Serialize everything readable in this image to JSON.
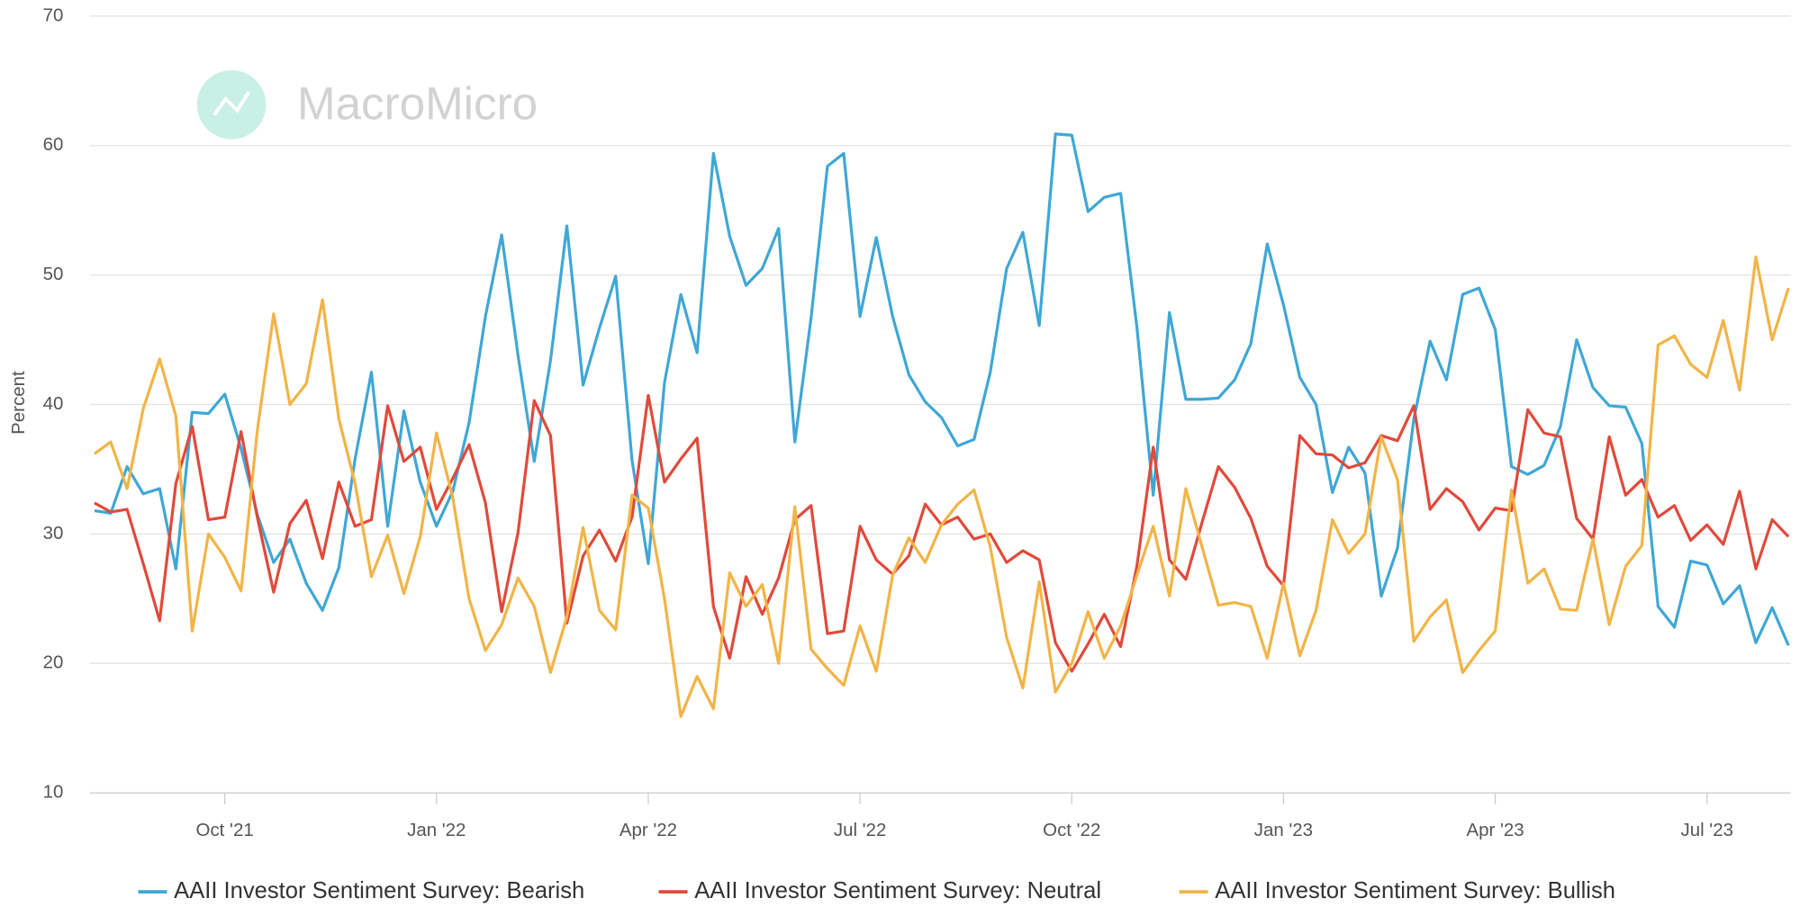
{
  "chart_data": {
    "type": "line",
    "watermark": "MacroMicro",
    "y_label": "Percent",
    "categories": [
      null,
      null,
      null,
      null,
      null,
      null,
      null,
      null,
      "Oct '21",
      null,
      null,
      null,
      null,
      null,
      null,
      null,
      null,
      null,
      null,
      null,
      null,
      "Jan '22",
      null,
      null,
      null,
      null,
      null,
      null,
      null,
      null,
      null,
      null,
      null,
      null,
      "Apr '22",
      null,
      null,
      null,
      null,
      null,
      null,
      null,
      null,
      null,
      null,
      null,
      null,
      "Jul '22",
      null,
      null,
      null,
      null,
      null,
      null,
      null,
      null,
      null,
      null,
      null,
      null,
      "Oct '22",
      null,
      null,
      null,
      null,
      null,
      null,
      null,
      null,
      null,
      null,
      null,
      null,
      "Jan '23",
      null,
      null,
      null,
      null,
      null,
      null,
      null,
      null,
      null,
      null,
      null,
      null,
      "Apr '23",
      null,
      null,
      null,
      null,
      null,
      null,
      null,
      null,
      null,
      null,
      null,
      null,
      "Jul '23",
      null,
      null,
      null,
      null,
      null
    ],
    "series": [
      {
        "name": "AAII Investor Sentiment Survey: Bearish",
        "color": "#3fa7d6",
        "values": [
          31.8,
          31.6,
          35.2,
          33.1,
          33.5,
          27.3,
          39.4,
          39.3,
          40.8,
          36.6,
          31.5,
          27.8,
          29.6,
          26.2,
          24.1,
          27.4,
          35.8,
          42.5,
          30.6,
          39.5,
          34.0,
          30.6,
          33.3,
          38.6,
          46.8,
          53.1,
          43.8,
          35.6,
          43.4,
          53.8,
          41.5,
          45.9,
          49.9,
          35.7,
          27.7,
          41.7,
          48.5,
          44.0,
          59.4,
          53.0,
          49.2,
          50.5,
          53.6,
          37.1,
          46.7,
          58.4,
          59.4,
          46.8,
          52.9,
          46.8,
          42.3,
          40.2,
          39.0,
          36.8,
          37.3,
          42.5,
          50.5,
          53.3,
          46.1,
          60.9,
          60.8,
          54.9,
          56.0,
          56.3,
          46.0,
          33.0,
          47.1,
          40.4,
          40.4,
          40.5,
          41.9,
          44.7,
          52.4,
          47.7,
          42.1,
          40.0,
          33.2,
          36.7,
          34.7,
          25.2,
          28.9,
          38.9,
          44.9,
          41.9,
          48.5,
          49.0,
          45.8,
          35.2,
          34.6,
          35.3,
          38.3,
          45.0,
          41.3,
          39.9,
          39.8,
          37.0,
          24.4,
          22.8,
          27.9,
          27.6,
          24.6,
          26.0,
          21.6,
          24.3,
          21.4
        ]
      },
      {
        "name": "AAII Investor Sentiment Survey: Neutral",
        "color": "#e04a3b",
        "values": [
          32.4,
          31.7,
          31.9,
          27.7,
          23.3,
          33.9,
          38.3,
          31.1,
          31.3,
          37.9,
          31.3,
          25.5,
          30.8,
          32.6,
          28.1,
          34.0,
          30.6,
          31.1,
          39.9,
          35.6,
          36.7,
          31.9,
          34.3,
          36.9,
          32.4,
          24.0,
          30.1,
          40.3,
          37.6,
          23.1,
          28.3,
          30.3,
          27.9,
          31.3,
          40.7,
          34.0,
          35.8,
          37.4,
          24.4,
          20.4,
          26.7,
          23.8,
          26.6,
          31.1,
          32.2,
          22.3,
          22.5,
          30.6,
          28.0,
          26.9,
          28.3,
          32.3,
          30.7,
          31.3,
          29.6,
          30.0,
          27.8,
          28.7,
          28.0,
          21.6,
          19.4,
          21.5,
          23.8,
          21.3,
          27.5,
          36.7,
          28.0,
          26.5,
          30.9,
          35.2,
          33.6,
          31.2,
          27.5,
          26.0,
          37.6,
          36.2,
          36.1,
          35.1,
          35.5,
          37.6,
          37.2,
          39.9,
          31.9,
          33.5,
          32.5,
          30.3,
          32.0,
          31.8,
          39.6,
          37.8,
          37.5,
          31.2,
          29.6,
          37.5,
          33.0,
          34.2,
          31.3,
          32.2,
          29.5,
          30.7,
          29.2,
          33.3,
          27.3,
          31.1,
          29.8
        ]
      },
      {
        "name": "AAII Investor Sentiment Survey: Bullish",
        "color": "#f2b447",
        "values": [
          36.2,
          37.1,
          33.5,
          39.7,
          43.5,
          39.1,
          22.5,
          30.0,
          28.2,
          25.6,
          38.0,
          47.0,
          40.0,
          41.6,
          48.1,
          38.9,
          33.9,
          26.7,
          29.9,
          25.4,
          29.8,
          37.8,
          32.8,
          25.0,
          21.0,
          23.0,
          26.6,
          24.4,
          19.3,
          23.6,
          30.5,
          24.1,
          22.6,
          33.0,
          32.0,
          25.0,
          15.9,
          19.0,
          16.5,
          27.0,
          24.4,
          26.1,
          20.0,
          32.1,
          21.1,
          19.6,
          18.3,
          22.9,
          19.4,
          26.8,
          29.7,
          27.8,
          30.7,
          32.3,
          33.4,
          29.0,
          22.0,
          18.1,
          26.3,
          17.8,
          20.0,
          24.0,
          20.4,
          22.9,
          26.8,
          30.6,
          25.2,
          33.5,
          29.0,
          24.5,
          24.7,
          24.4,
          20.4,
          26.2,
          20.6,
          24.1,
          31.1,
          28.5,
          30.0,
          37.5,
          34.2,
          21.7,
          23.6,
          24.9,
          19.3,
          21.0,
          22.5,
          33.4,
          26.2,
          27.3,
          24.2,
          24.1,
          29.6,
          23.0,
          27.5,
          29.1,
          44.6,
          45.3,
          43.1,
          42.1,
          46.5,
          41.1,
          51.4,
          45.0,
          49.0
        ]
      }
    ],
    "ylim": [
      10,
      70
    ],
    "yticks": [
      10,
      20,
      30,
      40,
      50,
      60,
      70
    ],
    "grid": true
  }
}
